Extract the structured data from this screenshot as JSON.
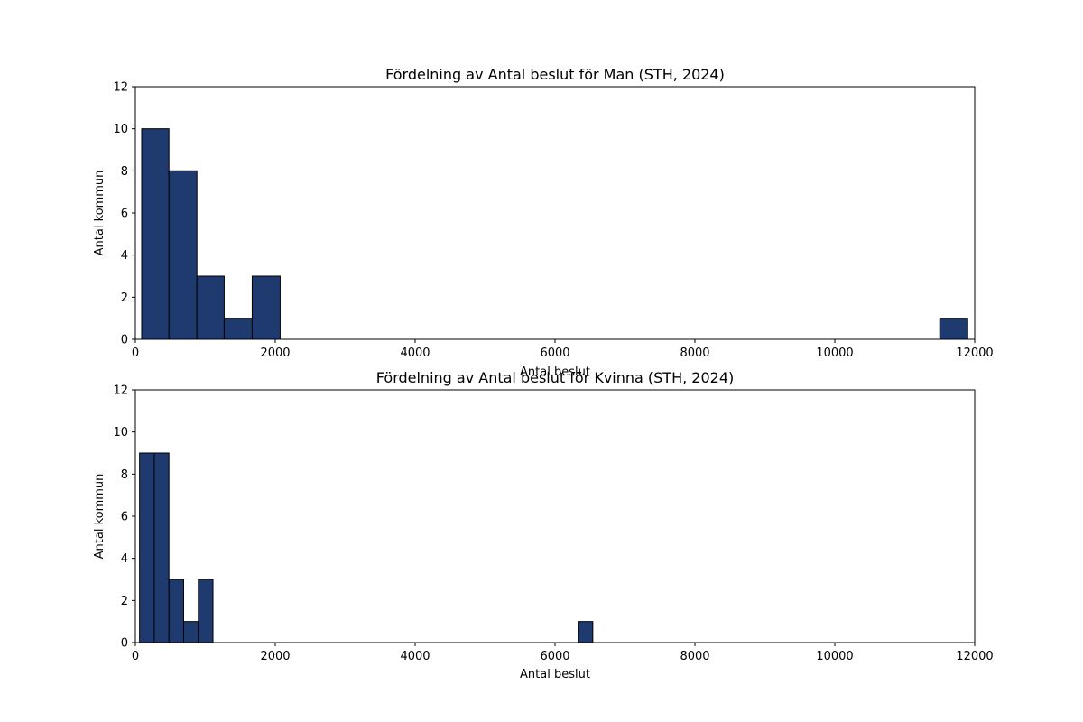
{
  "colors": {
    "bar_fill": "#1f3a6e",
    "bar_edge": "#000000",
    "axes": "#000000",
    "background": "#ffffff"
  },
  "chart_data": [
    {
      "type": "bar",
      "title": "Fördelning av Antal beslut för Man (STH, 2024)",
      "xlabel": "Antal beslut",
      "ylabel": "Antal kommun",
      "xlim": [
        0,
        12000
      ],
      "ylim": [
        0,
        12
      ],
      "xticks": [
        0,
        2000,
        4000,
        6000,
        8000,
        10000,
        12000
      ],
      "yticks": [
        0,
        2,
        4,
        6,
        8,
        10,
        12
      ],
      "grid": false,
      "bins": [
        {
          "x0": 90,
          "x1": 480,
          "count": 10
        },
        {
          "x0": 480,
          "x1": 880,
          "count": 8
        },
        {
          "x0": 880,
          "x1": 1270,
          "count": 3
        },
        {
          "x0": 1270,
          "x1": 1670,
          "count": 1
        },
        {
          "x0": 1670,
          "x1": 2070,
          "count": 3
        },
        {
          "x0": 11500,
          "x1": 11900,
          "count": 1
        }
      ]
    },
    {
      "type": "bar",
      "title": "Fördelning av Antal beslut för Kvinna (STH, 2024)",
      "xlabel": "Antal beslut",
      "ylabel": "Antal kommun",
      "xlim": [
        0,
        12000
      ],
      "ylim": [
        0,
        12
      ],
      "xticks": [
        0,
        2000,
        4000,
        6000,
        8000,
        10000,
        12000
      ],
      "yticks": [
        0,
        2,
        4,
        6,
        8,
        10,
        12
      ],
      "grid": false,
      "bins": [
        {
          "x0": 60,
          "x1": 270,
          "count": 9
        },
        {
          "x0": 270,
          "x1": 480,
          "count": 9
        },
        {
          "x0": 480,
          "x1": 690,
          "count": 3
        },
        {
          "x0": 690,
          "x1": 900,
          "count": 1
        },
        {
          "x0": 900,
          "x1": 1110,
          "count": 3
        },
        {
          "x0": 6330,
          "x1": 6540,
          "count": 1
        }
      ]
    }
  ]
}
